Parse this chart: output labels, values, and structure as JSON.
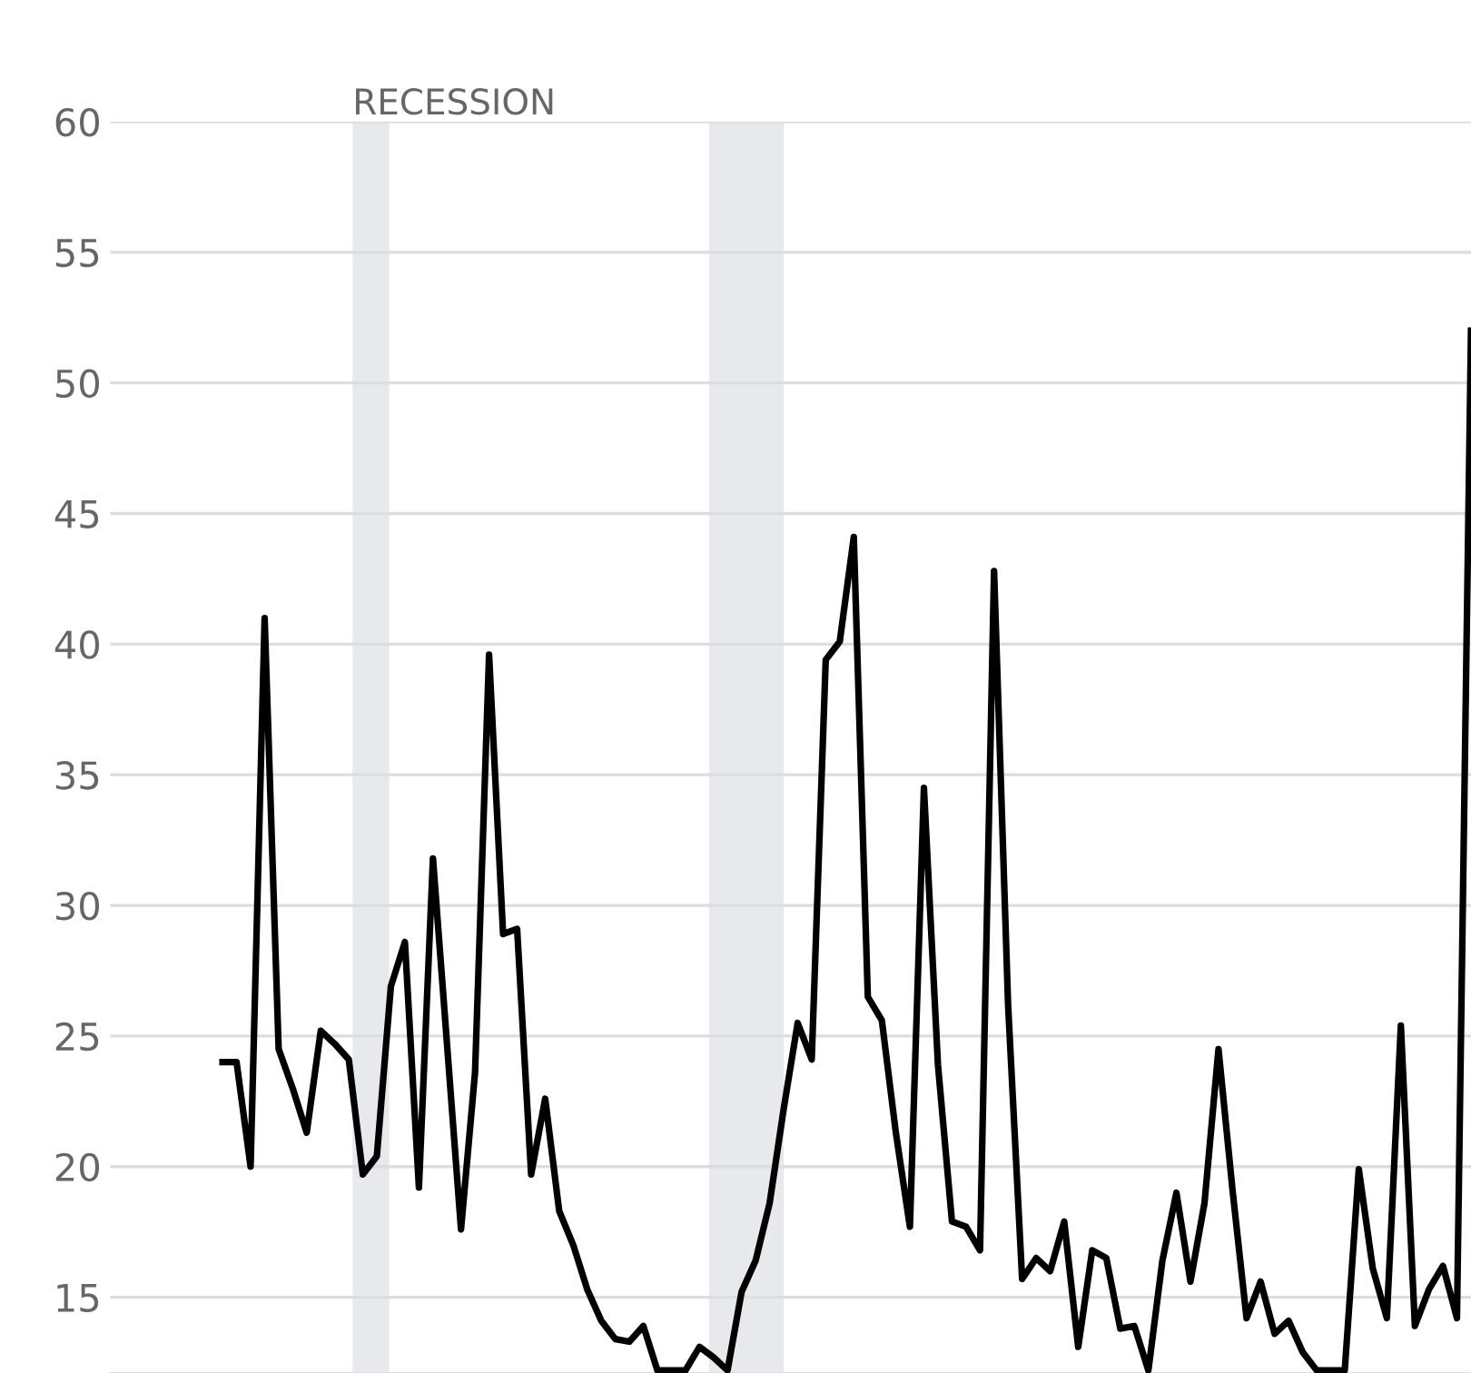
{
  "chart_data": {
    "type": "line",
    "categories": [
      null,
      null,
      null,
      null,
      null,
      null,
      null,
      null,
      null,
      null,
      null,
      null,
      null,
      null,
      null,
      null,
      null,
      null,
      null,
      null,
      null,
      null,
      null,
      null,
      null,
      null,
      null,
      null,
      null,
      null,
      null,
      null,
      null,
      null,
      null,
      null,
      null,
      null,
      null,
      null,
      null,
      null,
      null,
      null,
      null,
      null,
      null,
      null,
      null,
      null,
      null,
      null,
      null,
      null,
      null,
      null,
      null,
      null,
      null,
      null,
      null,
      null,
      null,
      null,
      null,
      null,
      null,
      null,
      null,
      null,
      null,
      null,
      null,
      null,
      null,
      null,
      null,
      null,
      null,
      null,
      null,
      null,
      null,
      null,
      null,
      null,
      null,
      null,
      null,
      null
    ],
    "series": [
      {
        "color": "#000000",
        "values": [
          24,
          24,
          20,
          41,
          24.5,
          23,
          21.3,
          25.2,
          24.7,
          24.1,
          19.7,
          20.4,
          26.9,
          28.6,
          19.2,
          31.8,
          24.7,
          17.6,
          23.6,
          39.6,
          28.9,
          29.1,
          19.7,
          22.6,
          18.3,
          17,
          15.3,
          14.1,
          13.4,
          13.3,
          13.9,
          12.2,
          12.2,
          12.2,
          13.1,
          12.7,
          12.2,
          15.2,
          16.4,
          18.6,
          22.2,
          25.5,
          24.1,
          39.4,
          40.1,
          44.1,
          26.5,
          25.6,
          21.3,
          17.7,
          34.5,
          23.9,
          17.9,
          17.7,
          16.8,
          42.8,
          26.2,
          15.7,
          16.5,
          16,
          17.9,
          13.1,
          16.8,
          16.5,
          13.8,
          13.9,
          12.2,
          16.4,
          19,
          15.6,
          18.6,
          24.5,
          19.1,
          14.2,
          15.6,
          13.6,
          14.1,
          12.9,
          12.2,
          12.2,
          12.2,
          19.9,
          16.1,
          14.2,
          25.4,
          13.9,
          15.3,
          16.2,
          14.2,
          52
        ]
      }
    ],
    "ylim": [
      12.1,
      60
    ],
    "yticks": [
      15,
      20,
      25,
      30,
      35,
      40,
      45,
      50,
      55,
      60
    ],
    "tick_labels": "y",
    "grid": "y",
    "line_style": "solid",
    "marker": "none",
    "annotations": [
      "RECESSION"
    ]
  }
}
